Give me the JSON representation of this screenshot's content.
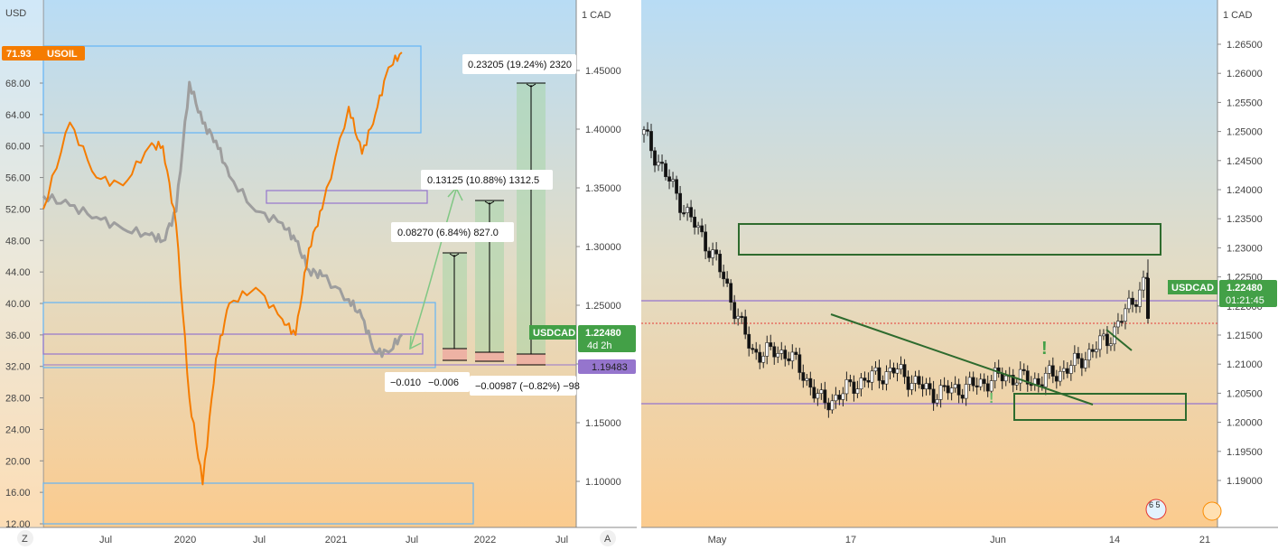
{
  "left": {
    "left_axis_unit": "USD",
    "right_axis_unit": "1 CAD",
    "left_ticks": [
      "68.00",
      "64.00",
      "60.00",
      "56.00",
      "52.00",
      "48.00",
      "44.00",
      "40.00",
      "36.00",
      "32.00",
      "28.00",
      "24.00",
      "20.00",
      "16.00",
      "12.00"
    ],
    "right_ticks": [
      "1.45000",
      "1.40000",
      "1.35000",
      "1.30000",
      "1.25000",
      "1.20000",
      "1.15000",
      "1.10000"
    ],
    "x_ticks": [
      "Jul",
      "2020",
      "Jul",
      "2021",
      "Jul",
      "2022",
      "Jul"
    ],
    "usoil_price": "71.93",
    "usoil_symbol": "USOIL",
    "usdcad_symbol": "USDCAD",
    "usdcad_price": "1.22480",
    "usdcad_countdown": "4d 2h",
    "level_badge": "1.19483",
    "measure_labels": [
      "0.23205 (19.24%) 2320",
      "0.13125 (10.88%) 1312.5",
      "0.08270 (6.84%) 827.0"
    ],
    "bottom_labels": [
      "−0.010",
      "−0.006",
      "−0.00987 (−0.82%) −98"
    ],
    "corner_left": "Z",
    "corner_right": "A"
  },
  "right": {
    "axis_unit": "1 CAD",
    "y_ticks": [
      "1.26500",
      "1.26000",
      "1.25500",
      "1.25000",
      "1.24500",
      "1.24000",
      "1.23500",
      "1.23000",
      "1.22500",
      "1.22000",
      "1.21500",
      "1.21000",
      "1.20500",
      "1.20000",
      "1.19500",
      "1.19000"
    ],
    "x_ticks": [
      "May",
      "17",
      "Jun",
      "14",
      "21"
    ],
    "symbol": "USDCAD",
    "price": "1.22480",
    "countdown": "01:21:45",
    "event_badge": "6 5",
    "exclamation": "!"
  },
  "chart_data": [
    {
      "type": "line",
      "series": [
        {
          "name": "USOIL",
          "color": "#f57c00",
          "x": [
            "2019-04",
            "2019-06",
            "2019-08",
            "2019-10",
            "2019-12",
            "2020-01",
            "2020-02",
            "2020-03",
            "2020-04",
            "2020-05",
            "2020-06",
            "2020-08",
            "2020-10",
            "2020-11",
            "2020-12",
            "2021-01",
            "2021-03",
            "2021-04",
            "2021-05",
            "2021-06",
            "2021-07"
          ],
          "values": [
            52,
            63,
            56,
            55,
            60,
            60,
            50,
            28,
            17,
            33,
            40,
            42,
            38,
            36,
            47,
            52,
            65,
            59,
            64,
            70,
            71.9
          ]
        },
        {
          "name": "USDCAD",
          "color": "#9e9e9e",
          "x": [
            "2019-04",
            "2019-06",
            "2019-08",
            "2019-10",
            "2019-12",
            "2020-01",
            "2020-02",
            "2020-03",
            "2020-04",
            "2020-05",
            "2020-06",
            "2020-08",
            "2020-10",
            "2020-11",
            "2020-12",
            "2021-01",
            "2021-03",
            "2021-04",
            "2021-05",
            "2021-06",
            "2021-07"
          ],
          "values": [
            1.343,
            1.335,
            1.325,
            1.315,
            1.31,
            1.305,
            1.33,
            1.44,
            1.405,
            1.39,
            1.36,
            1.33,
            1.32,
            1.305,
            1.28,
            1.275,
            1.255,
            1.24,
            1.21,
            1.21,
            1.225
          ]
        }
      ],
      "left_ylim": [
        12,
        72
      ],
      "right_ylim": [
        1.05,
        1.48
      ],
      "annotations": [
        "0.23205 (19.24%) 2320",
        "0.13125 (10.88%) 1312.5",
        "0.08270 (6.84%) 827.0"
      ]
    },
    {
      "type": "candlestick",
      "series": [
        {
          "name": "USDCAD",
          "x": [
            "Apr-28",
            "May-01",
            "May-05",
            "May-10",
            "May-13",
            "May-17",
            "May-20",
            "May-25",
            "May-28",
            "Jun-01",
            "Jun-04",
            "Jun-08",
            "Jun-11",
            "Jun-14",
            "Jun-17"
          ],
          "values": [
            1.2495,
            1.238,
            1.228,
            1.212,
            1.212,
            1.203,
            1.207,
            1.209,
            1.205,
            1.206,
            1.208,
            1.207,
            1.21,
            1.215,
            1.2248
          ]
        }
      ],
      "ylim": [
        1.185,
        1.268
      ],
      "current": 1.2248
    }
  ]
}
